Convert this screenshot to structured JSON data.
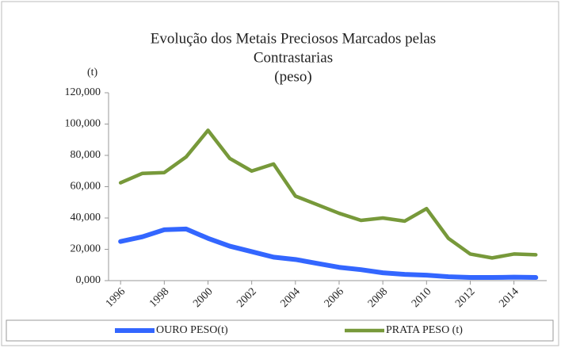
{
  "chart_data": {
    "type": "line",
    "title": [
      "Evolução dos Metais Preciosos Marcados pelas",
      "Contrastarias",
      "(peso)"
    ],
    "y_label": "(t)",
    "x": [
      1996,
      1997,
      1998,
      1999,
      2000,
      2001,
      2002,
      2003,
      2004,
      2005,
      2006,
      2007,
      2008,
      2009,
      2010,
      2011,
      2012,
      2013,
      2014,
      2015
    ],
    "xlim": [
      1995.45,
      2015.5
    ],
    "xticks": [
      1996,
      1998,
      2000,
      2002,
      2004,
      2006,
      2008,
      2010,
      2012,
      2014
    ],
    "ylim": [
      0,
      120
    ],
    "yticks": [
      {
        "value": 0,
        "label": "0,000"
      },
      {
        "value": 20,
        "label": "20,000"
      },
      {
        "value": 40,
        "label": "40,000"
      },
      {
        "value": 60,
        "label": "60,000"
      },
      {
        "value": 80,
        "label": "80,000"
      },
      {
        "value": 100,
        "label": "100,000"
      },
      {
        "value": 120,
        "label": "120,000"
      }
    ],
    "grid": false,
    "legend": "bottom",
    "series": [
      {
        "name": "OURO PESO(t)",
        "color": "#3366ff",
        "values": [
          25,
          28,
          32.5,
          33,
          27,
          22,
          18.5,
          15,
          13.5,
          11,
          8.5,
          7,
          5,
          4,
          3.5,
          2.5,
          2,
          2,
          2.2,
          2
        ]
      },
      {
        "name": "PRATA PESO (t)",
        "color": "#77993a",
        "values": [
          62.5,
          68.5,
          69,
          79,
          96,
          78,
          70,
          74.5,
          54,
          48.5,
          43,
          38.5,
          40,
          38,
          46,
          27,
          17,
          14.5,
          17,
          16.5
        ]
      }
    ]
  }
}
